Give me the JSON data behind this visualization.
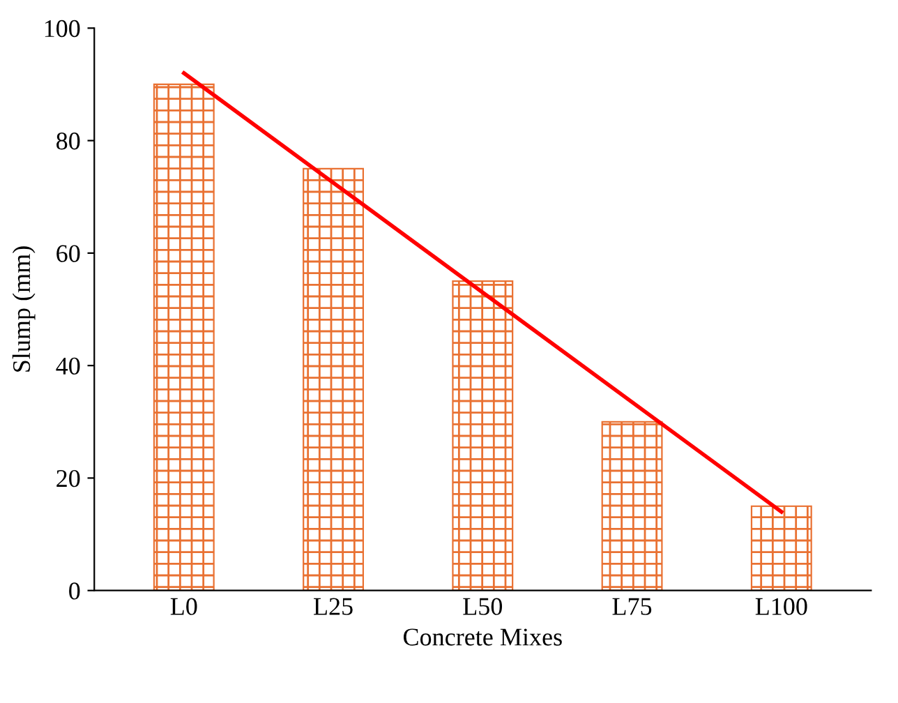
{
  "chart_data": {
    "type": "bar",
    "xlabel": "Concrete Mixes",
    "ylabel": "Slump (mm)",
    "categories": [
      "L0",
      "L25",
      "L50",
      "L75",
      "L100"
    ],
    "series": [
      {
        "color": "#e97132",
        "values": [
          90,
          75,
          55,
          30,
          15
        ]
      },
      {
        "type": "line",
        "color": "#ff0000",
        "x": [
          "L0",
          "L100"
        ],
        "values": [
          92,
          14
        ]
      }
    ],
    "ylim": [
      0,
      100
    ],
    "yticks": [
      0,
      20,
      40,
      60,
      80,
      100
    ],
    "grid": false,
    "legend": false
  }
}
